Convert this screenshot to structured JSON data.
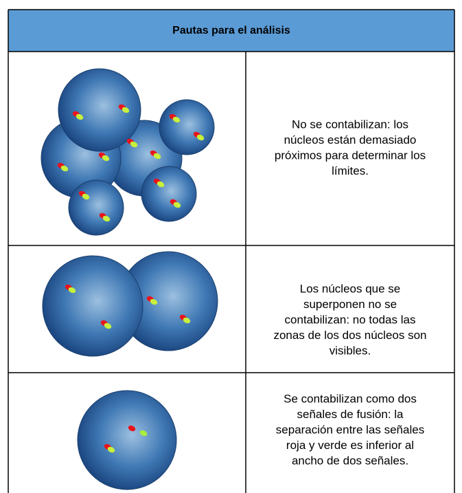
{
  "header": {
    "title": "Pautas para el análisis"
  },
  "table": {
    "rows": [
      {
        "lines": [
          "No se contabilizan: los",
          "núcleos están demasiado",
          "próximos para determinar los",
          "límites."
        ]
      },
      {
        "lines": [
          "Los núcleos que se",
          "superponen no se",
          "contabilizan: no todas las",
          "zonas de los dos núcleos son",
          "visibles."
        ]
      },
      {
        "lines": [
          "Se contabilizan como dos",
          "señales de fusión: la",
          "separación entre las señales",
          "roja y verde es inferior al",
          "ancho de dos señales."
        ]
      }
    ]
  }
}
